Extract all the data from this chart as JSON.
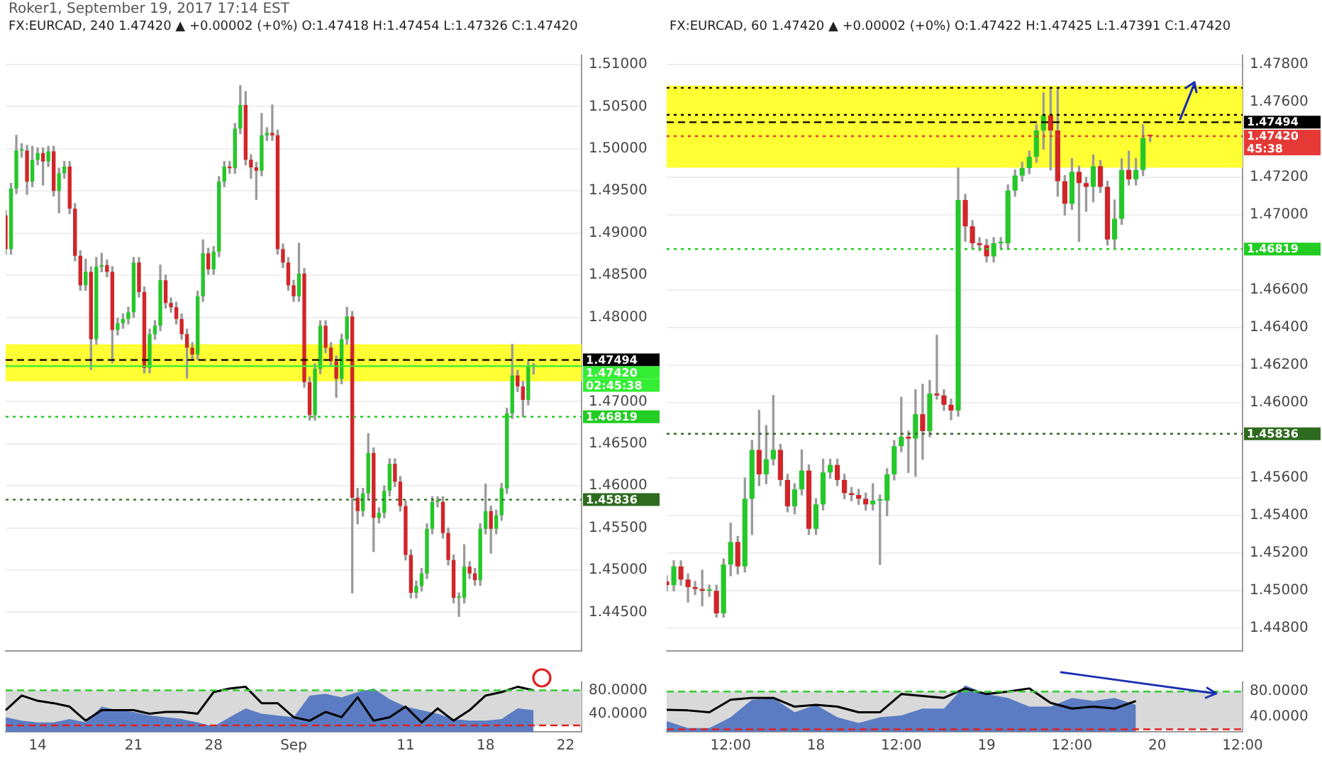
{
  "chart_data": [
    {
      "type": "candlestick",
      "title": "FX:EURCAD, 240 1.47420 ▲ +0.00002 (+0%) O:1.47418 H:1.47454 L:1.47326 C:1.47420",
      "subtitle": "Roker1, September 19, 2017 17:14 EST",
      "annotations": [
        "02:45:38"
      ],
      "categories": [
        null,
        null,
        null,
        null,
        null,
        null,
        null,
        null,
        null,
        null,
        null,
        null,
        null,
        null,
        null,
        null,
        null,
        null,
        null,
        null,
        null,
        null,
        null,
        null,
        null,
        null,
        null,
        null,
        null,
        null,
        null,
        null,
        null,
        null,
        null,
        null,
        null,
        null,
        null,
        null,
        null,
        null,
        null,
        null,
        null,
        null,
        null,
        null,
        null,
        null,
        null,
        null,
        null,
        null,
        null,
        null,
        null,
        null,
        null,
        null,
        null,
        null,
        null,
        null,
        null,
        null,
        null,
        null,
        null,
        null,
        null,
        null,
        null,
        null,
        null,
        null,
        null,
        null,
        null,
        null,
        null,
        null,
        null,
        null,
        null,
        null,
        null,
        null,
        null,
        null,
        null,
        null,
        null,
        null,
        null,
        null,
        null,
        null,
        null,
        null,
        null,
        null,
        null,
        null,
        null,
        null,
        null,
        null,
        null
      ],
      "ohlc": [
        [
          1.4921,
          1.4927,
          1.4875,
          1.4881
        ],
        [
          1.4881,
          1.4959,
          1.4875,
          1.4953
        ],
        [
          1.4953,
          1.5016,
          1.4947,
          1.4998
        ],
        [
          1.4998,
          1.5006,
          1.499,
          1.4998
        ],
        [
          1.4998,
          1.5004,
          1.4946,
          1.4961
        ],
        [
          1.4961,
          1.5003,
          1.4955,
          1.4987
        ],
        [
          1.4987,
          1.5001,
          1.4981,
          1.4995
        ],
        [
          1.4995,
          1.5001,
          1.4957,
          1.4985
        ],
        [
          1.4985,
          1.5003,
          1.4979,
          1.4997
        ],
        [
          1.4997,
          1.5003,
          1.4944,
          1.495
        ],
        [
          1.495,
          1.4977,
          1.4924,
          1.4971
        ],
        [
          1.4971,
          1.4985,
          1.4965,
          1.4979
        ],
        [
          1.4979,
          1.4985,
          1.4923,
          1.4929
        ],
        [
          1.4929,
          1.4935,
          1.4867,
          1.4873
        ],
        [
          1.4873,
          1.4879,
          1.4832,
          1.4838
        ],
        [
          1.4838,
          1.4869,
          1.4832,
          1.4854
        ],
        [
          1.4854,
          1.486,
          1.4738,
          1.4774
        ],
        [
          1.4774,
          1.4871,
          1.4768,
          1.486
        ],
        [
          1.486,
          1.4876,
          1.4854,
          1.4862
        ],
        [
          1.4862,
          1.4868,
          1.4848,
          1.4854
        ],
        [
          1.4854,
          1.486,
          1.4746,
          1.4785
        ],
        [
          1.4785,
          1.4799,
          1.4779,
          1.4793
        ],
        [
          1.4793,
          1.4804,
          1.4787,
          1.4798
        ],
        [
          1.4798,
          1.4812,
          1.4792,
          1.4806
        ],
        [
          1.4806,
          1.4871,
          1.48,
          1.4865
        ],
        [
          1.4865,
          1.4871,
          1.4824,
          1.483
        ],
        [
          1.483,
          1.4836,
          1.4734,
          1.474
        ],
        [
          1.474,
          1.4786,
          1.4734,
          1.478
        ],
        [
          1.478,
          1.4796,
          1.4774,
          1.479
        ],
        [
          1.479,
          1.4862,
          1.4784,
          1.4844
        ],
        [
          1.4844,
          1.485,
          1.4811,
          1.4817
        ],
        [
          1.4817,
          1.4823,
          1.4806,
          1.4812
        ],
        [
          1.4812,
          1.4818,
          1.4792,
          1.4798
        ],
        [
          1.4798,
          1.4804,
          1.4774,
          1.478
        ],
        [
          1.478,
          1.4786,
          1.4728,
          1.4764
        ],
        [
          1.4764,
          1.477,
          1.475,
          1.4756
        ],
        [
          1.4756,
          1.4831,
          1.475,
          1.4825
        ],
        [
          1.4825,
          1.4892,
          1.4819,
          1.4876
        ],
        [
          1.4876,
          1.4882,
          1.4851,
          1.4857
        ],
        [
          1.4857,
          1.4884,
          1.4851,
          1.4878
        ],
        [
          1.4878,
          1.4967,
          1.4872,
          1.4961
        ],
        [
          1.4961,
          1.4985,
          1.4955,
          1.4979
        ],
        [
          1.4979,
          1.4985,
          1.4971,
          1.4977
        ],
        [
          1.4977,
          1.503,
          1.4971,
          1.5024
        ],
        [
          1.5024,
          1.5075,
          1.5018,
          1.5052
        ],
        [
          1.5052,
          1.5068,
          1.4981,
          1.4987
        ],
        [
          1.4987,
          1.4993,
          1.4965,
          1.4978
        ],
        [
          1.4978,
          1.4984,
          1.494,
          1.4974
        ],
        [
          1.4974,
          1.5042,
          1.4968,
          1.5016
        ],
        [
          1.5016,
          1.5025,
          1.501,
          1.5019
        ],
        [
          1.5019,
          1.5052,
          1.501,
          1.5016
        ],
        [
          1.5016,
          1.5022,
          1.4875,
          1.4881
        ],
        [
          1.4881,
          1.4887,
          1.4859,
          1.4865
        ],
        [
          1.4865,
          1.4871,
          1.4832,
          1.4838
        ],
        [
          1.4838,
          1.4844,
          1.4819,
          1.4825
        ],
        [
          1.4825,
          1.4888,
          1.4819,
          1.4852
        ],
        [
          1.4852,
          1.4858,
          1.4717,
          1.4723
        ],
        [
          1.4723,
          1.4729,
          1.4678,
          1.4684
        ],
        [
          1.4684,
          1.4745,
          1.4678,
          1.4739
        ],
        [
          1.4739,
          1.4796,
          1.4733,
          1.479
        ],
        [
          1.479,
          1.4796,
          1.4758,
          1.4764
        ],
        [
          1.4764,
          1.477,
          1.4742,
          1.4748
        ],
        [
          1.4748,
          1.4754,
          1.4705,
          1.4727
        ],
        [
          1.4727,
          1.478,
          1.4721,
          1.4774
        ],
        [
          1.4774,
          1.4812,
          1.4768,
          1.4801
        ],
        [
          1.4801,
          1.4807,
          1.4473,
          1.4586
        ],
        [
          1.4586,
          1.4597,
          1.4555,
          1.457
        ],
        [
          1.457,
          1.4597,
          1.4564,
          1.4591
        ],
        [
          1.4591,
          1.4662,
          1.4585,
          1.4639
        ],
        [
          1.4639,
          1.4645,
          1.4522,
          1.4562
        ],
        [
          1.4562,
          1.4574,
          1.4556,
          1.4568
        ],
        [
          1.4568,
          1.46,
          1.4562,
          1.4594
        ],
        [
          1.4594,
          1.4632,
          1.4588,
          1.4626
        ],
        [
          1.4626,
          1.4632,
          1.4599,
          1.4605
        ],
        [
          1.4605,
          1.4611,
          1.457,
          1.4576
        ],
        [
          1.4576,
          1.4582,
          1.4512,
          1.4518
        ],
        [
          1.4518,
          1.4524,
          1.4467,
          1.4473
        ],
        [
          1.4473,
          1.4487,
          1.4467,
          1.4481
        ],
        [
          1.4481,
          1.4502,
          1.4475,
          1.4496
        ],
        [
          1.4496,
          1.4555,
          1.449,
          1.4549
        ],
        [
          1.4549,
          1.4587,
          1.4543,
          1.4581
        ],
        [
          1.4581,
          1.4587,
          1.4575,
          1.4581
        ],
        [
          1.4581,
          1.4587,
          1.4538,
          1.4544
        ],
        [
          1.4544,
          1.455,
          1.4506,
          1.4512
        ],
        [
          1.4512,
          1.4518,
          1.4461,
          1.4467
        ],
        [
          1.4467,
          1.4473,
          1.4445,
          1.4467
        ],
        [
          1.4467,
          1.453,
          1.4461,
          1.4504
        ],
        [
          1.4504,
          1.451,
          1.449,
          1.4496
        ],
        [
          1.4496,
          1.4502,
          1.4482,
          1.4488
        ],
        [
          1.4488,
          1.4555,
          1.4482,
          1.4549
        ],
        [
          1.4549,
          1.4602,
          1.4543,
          1.457
        ],
        [
          1.457,
          1.4576,
          1.452,
          1.4549
        ],
        [
          1.4549,
          1.4571,
          1.4543,
          1.4565
        ],
        [
          1.4565,
          1.4603,
          1.4559,
          1.4597
        ],
        [
          1.4597,
          1.4692,
          1.4591,
          1.4686
        ],
        [
          1.4686,
          1.4768,
          1.468,
          1.4731
        ],
        [
          1.4731,
          1.4737,
          1.4712,
          1.4718
        ],
        [
          1.4718,
          1.4724,
          1.4682,
          1.4702
        ],
        [
          1.4702,
          1.4748,
          1.4696,
          1.4742
        ],
        [
          1.47418,
          1.47454,
          1.47326,
          1.4742
        ],
        null,
        null,
        null,
        null,
        null,
        null,
        null,
        null,
        null
      ],
      "ylim": [
        1.4404,
        1.5111
      ],
      "yticks": [
        {
          "value": 1.445,
          "label": "1.44500"
        },
        {
          "value": 1.45,
          "label": "1.45000"
        },
        {
          "value": 1.455,
          "label": "1.45500"
        },
        {
          "value": 1.46,
          "label": "1.46000"
        },
        {
          "value": 1.465,
          "label": "1.46500"
        },
        {
          "value": 1.47,
          "label": "1.47000"
        },
        {
          "value": 1.48,
          "label": "1.48000"
        },
        {
          "value": 1.485,
          "label": "1.48500"
        },
        {
          "value": 1.49,
          "label": "1.49000"
        },
        {
          "value": 1.495,
          "label": "1.49500"
        },
        {
          "value": 1.5,
          "label": "1.50000"
        },
        {
          "value": 1.505,
          "label": "1.50500"
        },
        {
          "value": 1.51,
          "label": "1.51000"
        }
      ],
      "bands": [
        {
          "axis": "y",
          "from": 1.4724,
          "to": 1.4768,
          "color": "#ffff33"
        }
      ],
      "ref_lines": [
        {
          "axis": "y",
          "value": 1.47494,
          "label": "1.47494",
          "color": "#000000",
          "line_style": "dashed"
        },
        {
          "axis": "y",
          "value": 1.4742,
          "label": "1.47420",
          "color": "#33ee33",
          "line_style": "solid"
        },
        {
          "axis": "y",
          "value": 1.46819,
          "label": "1.46819",
          "color": "#22cc22",
          "line_style": "dotted"
        },
        {
          "axis": "y",
          "value": 1.45836,
          "label": "1.45836",
          "color": "#2e6b1e",
          "line_style": "dotted"
        }
      ],
      "grid": "y",
      "tick_labels": "y"
    },
    {
      "type": "line",
      "categories": [
        null,
        null,
        "14",
        null,
        null,
        null,
        null,
        null,
        "21",
        null,
        null,
        null,
        null,
        "28",
        null,
        null,
        null,
        null,
        "Sep",
        null,
        null,
        null,
        null,
        null,
        null,
        "11",
        null,
        null,
        null,
        null,
        "18",
        null,
        null,
        null,
        null,
        "22",
        null
      ],
      "series": [
        {
          "type": "area",
          "color": "#5b7cc2",
          "values": [
            34,
            28,
            25,
            25,
            31,
            25,
            52,
            46,
            43,
            37,
            34,
            31,
            25,
            18,
            34,
            49,
            40,
            37,
            34,
            71,
            74,
            68,
            77,
            83,
            65,
            52,
            46,
            40,
            31,
            28,
            28,
            31,
            49,
            46,
            null,
            null,
            null
          ]
        },
        {
          "color": "#000000",
          "values": [
            46,
            71,
            62,
            58,
            52,
            28,
            46,
            46,
            46,
            40,
            43,
            43,
            40,
            77,
            83,
            86,
            58,
            58,
            34,
            28,
            43,
            34,
            68,
            28,
            34,
            52,
            25,
            49,
            28,
            46,
            71,
            77,
            86,
            80,
            null,
            null,
            null
          ]
        }
      ],
      "ylim": [
        9,
        94
      ],
      "yticks": [
        {
          "value": 40,
          "label": "40.0000"
        },
        {
          "value": 80,
          "label": "80.0000"
        }
      ],
      "bands": [
        {
          "axis": "y",
          "from": 20,
          "to": 80,
          "color": "#d9d9d9"
        }
      ],
      "ref_lines": [
        {
          "axis": "y",
          "value": 80,
          "color": "#33cc33",
          "line_style": "dashed"
        },
        {
          "axis": "y",
          "value": 20,
          "color": "#e02020",
          "line_style": "dashed"
        }
      ],
      "marker": "none"
    },
    {
      "type": "candlestick",
      "title": "FX:EURCAD, 60 1.47420 ▲ +0.00002 (+0%) O:1.47422 H:1.47425 L:1.47391 C:1.47420",
      "annotations": [
        "45:38"
      ],
      "categories": [
        null,
        null,
        null,
        null,
        null,
        null,
        null,
        null,
        null,
        null,
        null,
        null,
        null,
        null,
        null,
        null,
        null,
        null,
        null,
        null,
        null,
        null,
        null,
        null,
        null,
        null,
        null,
        null,
        null,
        null,
        null,
        null,
        null,
        null,
        null,
        null,
        null,
        null,
        null,
        null,
        null,
        null,
        null,
        null,
        null,
        null,
        null,
        null,
        null,
        null,
        null,
        null,
        null,
        null,
        null,
        null,
        null,
        null,
        null,
        null,
        null,
        null,
        null,
        null,
        null,
        null,
        null,
        null,
        null,
        null,
        null,
        null,
        null,
        null,
        null,
        null,
        null,
        null,
        null,
        null,
        null,
        null
      ],
      "ohlc": [
        [
          1.4505,
          1.4508,
          1.45,
          1.4503
        ],
        [
          1.4503,
          1.4516,
          1.45,
          1.4513
        ],
        [
          1.4513,
          1.4516,
          1.4503,
          1.4506
        ],
        [
          1.4506,
          1.4509,
          1.4494,
          1.4502
        ],
        [
          1.4502,
          1.4505,
          1.4498,
          1.4501
        ],
        [
          1.4501,
          1.4511,
          1.4492,
          1.45
        ],
        [
          1.45,
          1.4503,
          1.4497,
          1.45
        ],
        [
          1.45,
          1.4503,
          1.4486,
          1.4488
        ],
        [
          1.4488,
          1.4517,
          1.4486,
          1.4514
        ],
        [
          1.4514,
          1.4536,
          1.4508,
          1.4526
        ],
        [
          1.4526,
          1.4529,
          1.4509,
          1.4513
        ],
        [
          1.4513,
          1.456,
          1.451,
          1.4549
        ],
        [
          1.4549,
          1.458,
          1.453,
          1.4575
        ],
        [
          1.4575,
          1.4596,
          1.4556,
          1.4562
        ],
        [
          1.4562,
          1.4588,
          1.4557,
          1.457
        ],
        [
          1.457,
          1.4604,
          1.4567,
          1.4575
        ],
        [
          1.4575,
          1.4578,
          1.4556,
          1.4559
        ],
        [
          1.4559,
          1.4562,
          1.4542,
          1.4545
        ],
        [
          1.4545,
          1.4557,
          1.4541,
          1.4554
        ],
        [
          1.4554,
          1.4575,
          1.4551,
          1.4564
        ],
        [
          1.4564,
          1.4567,
          1.453,
          1.4533
        ],
        [
          1.4533,
          1.4549,
          1.453,
          1.4546
        ],
        [
          1.4546,
          1.457,
          1.4543,
          1.4563
        ],
        [
          1.4563,
          1.457,
          1.456,
          1.4567
        ],
        [
          1.4567,
          1.457,
          1.4556,
          1.4559
        ],
        [
          1.4559,
          1.4562,
          1.4549,
          1.4552
        ],
        [
          1.4552,
          1.4555,
          1.4548,
          1.4551
        ],
        [
          1.4551,
          1.4554,
          1.4546,
          1.4549
        ],
        [
          1.4549,
          1.4552,
          1.4543,
          1.4546
        ],
        [
          1.4546,
          1.4557,
          1.4543,
          1.4548
        ],
        [
          1.4548,
          1.4551,
          1.4514,
          1.4548
        ],
        [
          1.4548,
          1.4565,
          1.454,
          1.4562
        ],
        [
          1.4562,
          1.458,
          1.4559,
          1.4577
        ],
        [
          1.4577,
          1.4603,
          1.4574,
          1.4582
        ],
        [
          1.4582,
          1.4585,
          1.4563,
          1.4581
        ],
        [
          1.4581,
          1.4607,
          1.4561,
          1.4594
        ],
        [
          1.4594,
          1.461,
          1.457,
          1.4585
        ],
        [
          1.4585,
          1.4612,
          1.4582,
          1.4605
        ],
        [
          1.4605,
          1.4636,
          1.4602,
          1.4604
        ],
        [
          1.4604,
          1.4607,
          1.4596,
          1.4599
        ],
        [
          1.4599,
          1.4602,
          1.4591,
          1.4596
        ],
        [
          1.4596,
          1.4725,
          1.4593,
          1.4708
        ],
        [
          1.4708,
          1.4711,
          1.4686,
          1.4694
        ],
        [
          1.4694,
          1.4697,
          1.4682,
          1.4685
        ],
        [
          1.4685,
          1.4688,
          1.4681,
          1.4684
        ],
        [
          1.4684,
          1.4687,
          1.4675,
          1.4678
        ],
        [
          1.4678,
          1.4688,
          1.4675,
          1.4685
        ],
        [
          1.4685,
          1.4688,
          1.4682,
          1.4685
        ],
        [
          1.4685,
          1.4716,
          1.4682,
          1.4713
        ],
        [
          1.4713,
          1.4724,
          1.471,
          1.4721
        ],
        [
          1.4721,
          1.4728,
          1.4718,
          1.4725
        ],
        [
          1.4725,
          1.4734,
          1.4722,
          1.4731
        ],
        [
          1.4731,
          1.4748,
          1.4728,
          1.4745
        ],
        [
          1.4745,
          1.4765,
          1.4735,
          1.4753
        ],
        [
          1.4753,
          1.4768,
          1.4724,
          1.4745
        ],
        [
          1.4745,
          1.4768,
          1.471,
          1.4718
        ],
        [
          1.4718,
          1.4721,
          1.47,
          1.4706
        ],
        [
          1.4706,
          1.473,
          1.4703,
          1.4723
        ],
        [
          1.4723,
          1.4726,
          1.4686,
          1.4717
        ],
        [
          1.4717,
          1.472,
          1.4702,
          1.4715
        ],
        [
          1.4715,
          1.4732,
          1.4707,
          1.4726
        ],
        [
          1.4726,
          1.4729,
          1.4712,
          1.4715
        ],
        [
          1.4715,
          1.4718,
          1.4684,
          1.4687
        ],
        [
          1.4687,
          1.4708,
          1.4682,
          1.4698
        ],
        [
          1.4698,
          1.473,
          1.4695,
          1.4724
        ],
        [
          1.4724,
          1.4734,
          1.4716,
          1.4719
        ],
        [
          1.4719,
          1.473,
          1.4716,
          1.4724
        ],
        [
          1.4724,
          1.4748,
          1.4721,
          1.4741
        ],
        [
          1.47422,
          1.47425,
          1.47391,
          1.4742
        ],
        null,
        null,
        null,
        null,
        null,
        null,
        null,
        null,
        null,
        null,
        null,
        null,
        null
      ],
      "ylim": [
        1.4468,
        1.4785
      ],
      "yticks": [
        {
          "value": 1.448,
          "label": "1.44800"
        },
        {
          "value": 1.45,
          "label": "1.45000"
        },
        {
          "value": 1.452,
          "label": "1.45200"
        },
        {
          "value": 1.454,
          "label": "1.45400"
        },
        {
          "value": 1.456,
          "label": "1.45600"
        },
        {
          "value": 1.46,
          "label": "1.46000"
        },
        {
          "value": 1.462,
          "label": "1.46200"
        },
        {
          "value": 1.464,
          "label": "1.46400"
        },
        {
          "value": 1.466,
          "label": "1.46600"
        },
        {
          "value": 1.47,
          "label": "1.47000"
        },
        {
          "value": 1.472,
          "label": "1.47200"
        },
        {
          "value": 1.476,
          "label": "1.47600"
        },
        {
          "value": 1.478,
          "label": "1.47800"
        }
      ],
      "bands": [
        {
          "axis": "y",
          "from": 1.47252,
          "to": 1.47689,
          "color": "#ffff33"
        }
      ],
      "ref_lines": [
        {
          "axis": "y",
          "value": 1.47677,
          "color": "#000000",
          "line_style": "dotted"
        },
        {
          "axis": "y",
          "value": 1.47533,
          "color": "#000000",
          "line_style": "dotted"
        },
        {
          "axis": "y",
          "value": 1.47494,
          "label": "1.47494",
          "color": "#000000",
          "line_style": "dashed"
        },
        {
          "axis": "y",
          "value": 1.4742,
          "label": "1.47420",
          "color": "#e53935",
          "line_style": "dotted"
        },
        {
          "axis": "y",
          "value": 1.46819,
          "label": "1.46819",
          "color": "#22cc22",
          "line_style": "dotted"
        },
        {
          "axis": "y",
          "value": 1.45836,
          "label": "1.45836",
          "color": "#2e6b1e",
          "line_style": "dotted"
        }
      ],
      "grid": "y",
      "tick_labels": "y"
    },
    {
      "type": "line",
      "categories": [
        null,
        null,
        null,
        "12:00",
        null,
        null,
        null,
        "18",
        null,
        null,
        null,
        "12:00",
        null,
        null,
        null,
        "19",
        null,
        null,
        null,
        "12:00",
        null,
        null,
        null,
        "20",
        null,
        null,
        null,
        "12:00"
      ],
      "series": [
        {
          "type": "area",
          "color": "#5b7cc2",
          "values": [
            33,
            22,
            22,
            39,
            67,
            70,
            47,
            59,
            39,
            30,
            39,
            42,
            53,
            53,
            90,
            76,
            70,
            56,
            56,
            70,
            65,
            70,
            59,
            null,
            null,
            null,
            null,
            null
          ]
        },
        {
          "color": "#000000",
          "values": [
            51,
            50,
            47,
            67,
            70,
            70,
            56,
            59,
            56,
            47,
            47,
            76,
            73,
            70,
            85,
            76,
            80,
            85,
            62,
            53,
            56,
            53,
            65,
            null,
            null,
            null,
            null,
            null
          ]
        }
      ],
      "ylim": [
        16,
        95
      ],
      "yticks": [
        {
          "value": 40,
          "label": "40.0000"
        },
        {
          "value": 80,
          "label": "80.0000"
        }
      ],
      "bands": [
        {
          "axis": "y",
          "from": 20,
          "to": 80,
          "color": "#d9d9d9"
        }
      ],
      "ref_lines": [
        {
          "axis": "y",
          "value": 80,
          "color": "#33cc33",
          "line_style": "dashed"
        },
        {
          "axis": "y",
          "value": 20,
          "color": "#e02020",
          "line_style": "dashed"
        }
      ],
      "marker": "none"
    }
  ]
}
